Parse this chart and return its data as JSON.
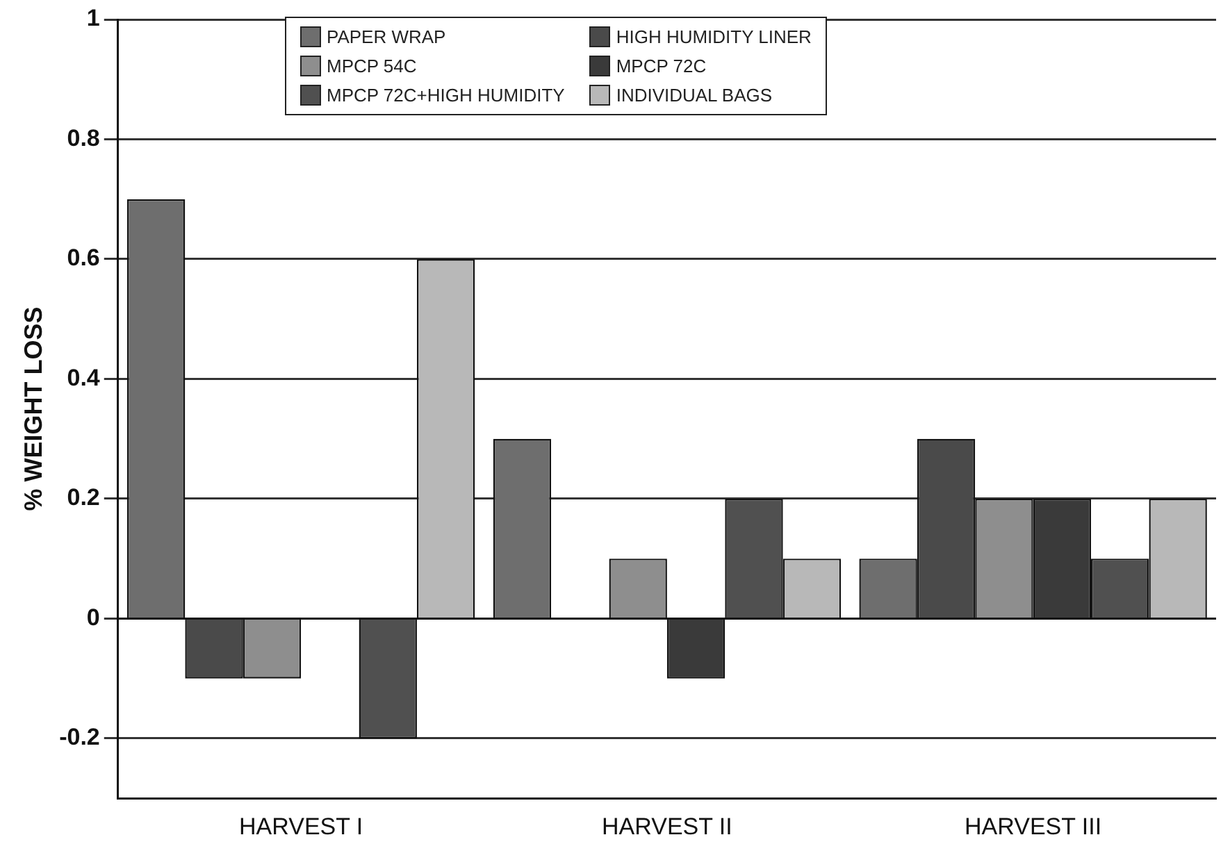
{
  "chart_data": {
    "type": "bar",
    "ylabel": "% WEIGHT LOSS",
    "categories": [
      "HARVEST I",
      "HARVEST II",
      "HARVEST III"
    ],
    "series": [
      {
        "name": "PAPER WRAP",
        "color": "#6e6e6e",
        "values": [
          0.7,
          0.3,
          0.1
        ]
      },
      {
        "name": "HIGH HUMIDITY LINER",
        "color": "#4a4a4a",
        "values": [
          -0.1,
          0,
          0.3
        ]
      },
      {
        "name": "MPCP 54C",
        "color": "#8e8e8e",
        "values": [
          -0.1,
          0.1,
          0.2
        ]
      },
      {
        "name": "MPCP 72C",
        "color": "#3a3a3a",
        "values": [
          0,
          -0.1,
          0.2
        ]
      },
      {
        "name": "MPCP 72C+HIGH HUMIDITY",
        "color": "#505050",
        "values": [
          -0.2,
          0.2,
          0.1
        ]
      },
      {
        "name": "INDIVIDUAL BAGS",
        "color": "#b8b8b8",
        "values": [
          0.6,
          0.1,
          0.2
        ]
      }
    ],
    "ylim": [
      -0.3,
      1
    ],
    "yticks": [
      -0.2,
      0,
      0.2,
      0.4,
      0.6,
      0.8,
      1
    ],
    "grid": "y",
    "legend": "top"
  }
}
